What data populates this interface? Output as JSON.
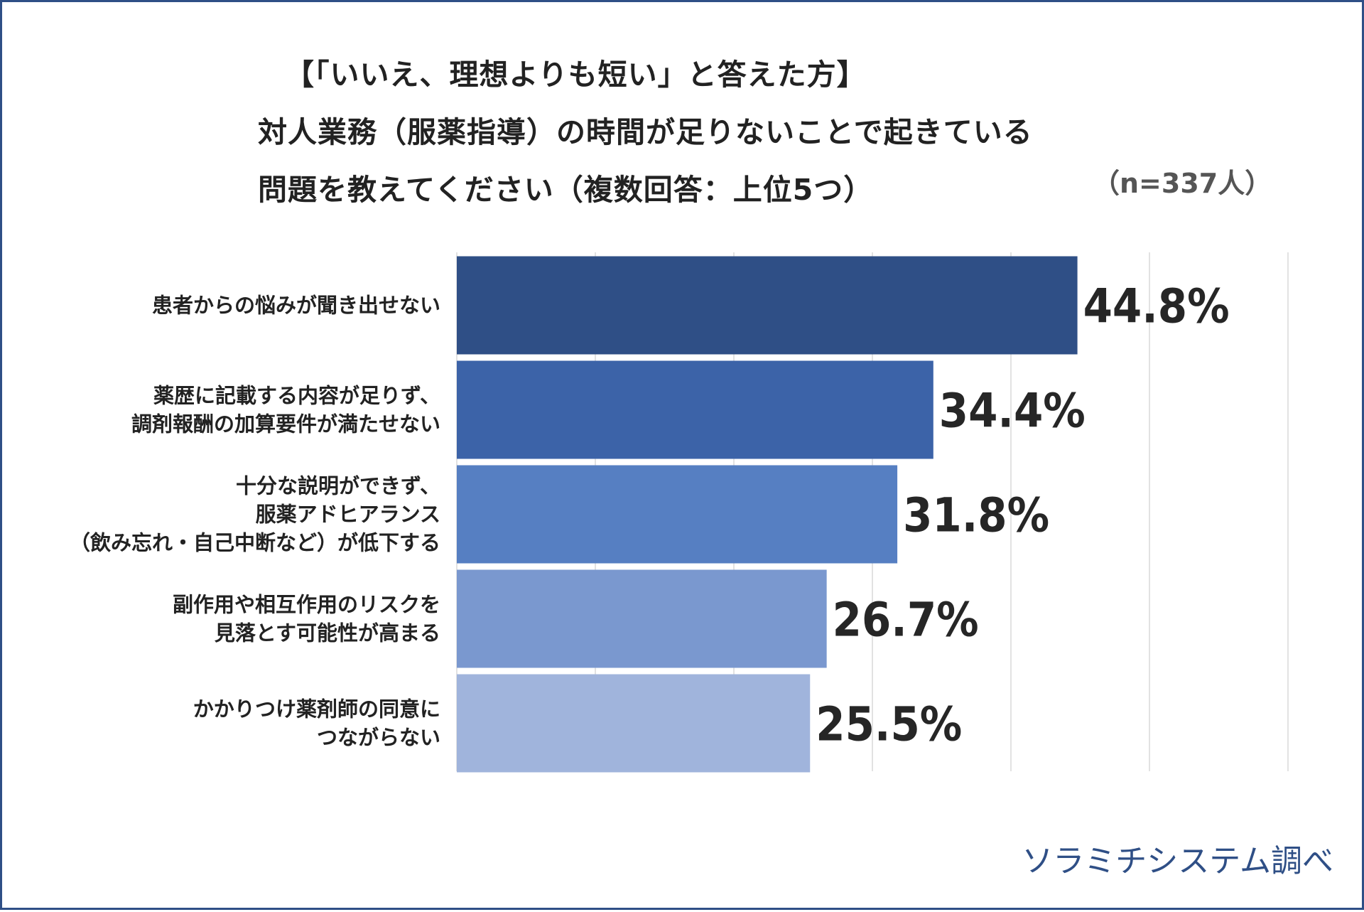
{
  "chart_data": {
    "type": "bar",
    "orientation": "horizontal",
    "title_lines": [
      "【「いいえ、理想よりも短い」と答えた方】",
      "対人業務（服薬指導）の時間が足りないことで起きている",
      "問題を教えてください（複数回答：上位5つ）"
    ],
    "sample_note": "（n=337人）",
    "categories": [
      [
        "患者からの悩みが聞き出せない"
      ],
      [
        "薬歴に記載する内容が足りず、",
        "調剤報酬の加算要件が満たせない"
      ],
      [
        "十分な説明ができず、",
        "服薬アドヒアランス",
        "（飲み忘れ・自己中断など）が低下する"
      ],
      [
        "副作用や相互作用のリスクを",
        "見落とす可能性が高まる"
      ],
      [
        "かかりつけ薬剤師の同意に",
        "つながらない"
      ]
    ],
    "values": [
      44.8,
      34.4,
      31.8,
      26.7,
      25.5
    ],
    "value_labels": [
      "44.8%",
      "34.4%",
      "31.8%",
      "26.7%",
      "25.5%"
    ],
    "bar_colors": [
      "#2f4f86",
      "#3c63a8",
      "#567fc2",
      "#7a98cf",
      "#a0b4dc"
    ],
    "xlim": [
      0,
      60
    ],
    "grid": true,
    "source": "ソラミチシステム調べ"
  }
}
